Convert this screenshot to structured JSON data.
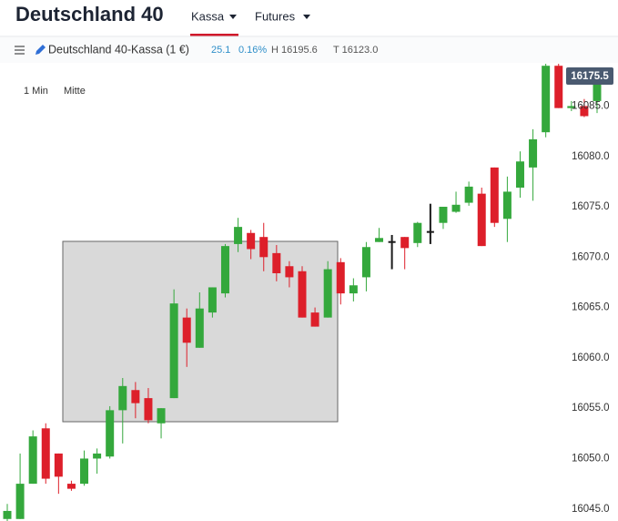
{
  "header": {
    "title": "Deutschland 40",
    "tabs": [
      "Kassa",
      "Futures"
    ]
  },
  "toolbar": {
    "instrument": "Deutschland 40-Kassa (1 €)",
    "change": "25.1",
    "change_pct": "0.16%",
    "high": "H 16195.6",
    "low": "T 16123.0"
  },
  "chart_options": {
    "interval": "1 Min",
    "price_mode": "Mitte",
    "price_tag": "16175.5"
  },
  "chart_data": {
    "type": "candlestick",
    "open": [
      16044.0,
      16044.0,
      16047.5,
      16053.0,
      16050.5,
      16047.5,
      16047.5,
      16050.0,
      16050.2,
      16054.8,
      16056.8,
      16056.0,
      16053.5,
      16056.0,
      16064.0,
      16061.0,
      16064.5,
      16066.4,
      16071.3,
      16072.4,
      16072.0,
      16070.4,
      16069.1,
      16068.6,
      16064.5,
      16064.0,
      16069.5,
      16066.4,
      16068.0,
      16071.5,
      16071.5,
      16072.0,
      16071.4,
      16072.5,
      16073.4,
      16074.5,
      16075.4,
      16076.3,
      16078.9,
      16073.8,
      16076.9,
      16078.9,
      16082.4,
      16089.0,
      16084.8,
      16085.0,
      16085.5
    ],
    "high": [
      16045.5,
      16050.5,
      16052.8,
      16053.5,
      16050.5,
      16047.8,
      16050.8,
      16051.0,
      16055.2,
      16058.0,
      16057.6,
      16057.0,
      16055.0,
      16066.8,
      16064.9,
      16066.5,
      16067.0,
      16071.3,
      16073.9,
      16072.7,
      16073.4,
      16071.2,
      16069.6,
      16069.1,
      16065.0,
      16069.6,
      16069.9,
      16067.9,
      16071.5,
      16072.9,
      16072.2,
      16072.0,
      16073.5,
      16075.3,
      16075.0,
      16076.5,
      16077.5,
      16076.9,
      16078.9,
      16078.0,
      16080.5,
      16082.7,
      16089.2,
      16089.2,
      16085.5,
      16085.7,
      16088.6
    ],
    "low": [
      16043.8,
      16044.0,
      16047.5,
      16047.5,
      16046.5,
      16046.8,
      16047.3,
      16048.5,
      16050.0,
      16051.5,
      16054.0,
      16053.5,
      16052.0,
      16056.0,
      16059.1,
      16061.0,
      16064.0,
      16066.0,
      16070.5,
      16069.8,
      16068.6,
      16067.6,
      16067.0,
      16064.0,
      16063.1,
      16064.0,
      16065.3,
      16065.6,
      16066.6,
      16071.5,
      16068.8,
      16068.8,
      16071.0,
      16071.3,
      16072.8,
      16074.4,
      16075.1,
      16071.1,
      16073.0,
      16071.5,
      16075.9,
      16075.6,
      16081.9,
      16084.8,
      16084.5,
      16083.9,
      16084.3
    ],
    "close": [
      16044.8,
      16047.5,
      16052.2,
      16048.0,
      16048.2,
      16047.0,
      16050.0,
      16050.5,
      16054.8,
      16057.2,
      16055.5,
      16053.8,
      16055.0,
      16065.4,
      16061.5,
      16064.9,
      16067.0,
      16071.1,
      16073.0,
      16070.8,
      16070.0,
      16068.4,
      16068.0,
      16064.0,
      16063.1,
      16068.8,
      16066.4,
      16067.2,
      16071.0,
      16071.9,
      16071.5,
      16070.9,
      16073.4,
      16072.5,
      16075.0,
      16075.2,
      16077.0,
      16071.1,
      16073.4,
      16076.5,
      16079.5,
      16081.7,
      16089.0,
      16084.8,
      16085.0,
      16084.0,
      16087.4
    ],
    "colors": {
      "up": "#34a83c",
      "down": "#dd1f2a",
      "flat": "#1a1a1a"
    },
    "ylim": [
      16043.8,
      16089.2
    ],
    "yticks": [
      {
        "value": 16045,
        "label": "16045.0"
      },
      {
        "value": 16050,
        "label": "16050.0"
      },
      {
        "value": 16055,
        "label": "16055.0"
      },
      {
        "value": 16060,
        "label": "16060.0"
      },
      {
        "value": 16065,
        "label": "16065.0"
      },
      {
        "value": 16070,
        "label": "16070.0"
      },
      {
        "value": 16075,
        "label": "16075.0"
      },
      {
        "value": 16080,
        "label": "16080.0"
      },
      {
        "value": 16085,
        "label": "16085.0"
      }
    ]
  }
}
